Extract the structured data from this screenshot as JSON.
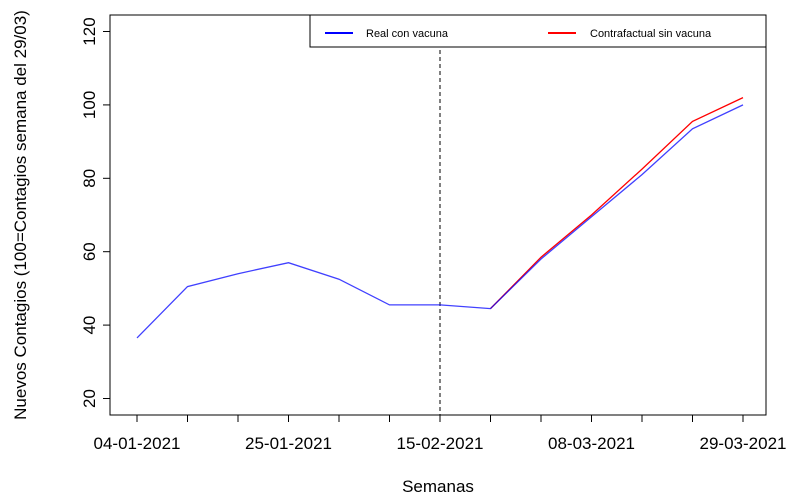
{
  "chart_data": {
    "type": "line",
    "xlabel": "Semanas",
    "ylabel": "Nuevos Contagios (100=Contagios semana del 29/03)",
    "ylim": [
      20,
      120
    ],
    "yticks": [
      20,
      40,
      60,
      80,
      100,
      120
    ],
    "x": [
      "04-01-2021",
      "11-01-2021",
      "18-01-2021",
      "25-01-2021",
      "01-02-2021",
      "08-02-2021",
      "15-02-2021",
      "22-02-2021",
      "01-03-2021",
      "08-03-2021",
      "15-03-2021",
      "22-03-2021",
      "29-03-2021"
    ],
    "xtick_labels": [
      "04-01-2021",
      "",
      "",
      "25-01-2021",
      "",
      "",
      "15-02-2021",
      "",
      "",
      "08-03-2021",
      "",
      "",
      "29-03-2021"
    ],
    "intervention_x": "15-02-2021",
    "legend_position": "top-right",
    "series": [
      {
        "name": "Real con vacuna",
        "color": "#0000ff",
        "values": [
          36.5,
          50.5,
          54.0,
          57.0,
          52.5,
          45.5,
          45.5,
          44.5,
          58.0,
          69.5,
          81.0,
          93.5,
          100.0
        ]
      },
      {
        "name": "Contrafactual sin vacuna",
        "color": "#ff0000",
        "values": [
          null,
          null,
          null,
          null,
          null,
          null,
          null,
          44.5,
          58.5,
          70.0,
          82.5,
          95.5,
          102.0
        ]
      }
    ]
  }
}
